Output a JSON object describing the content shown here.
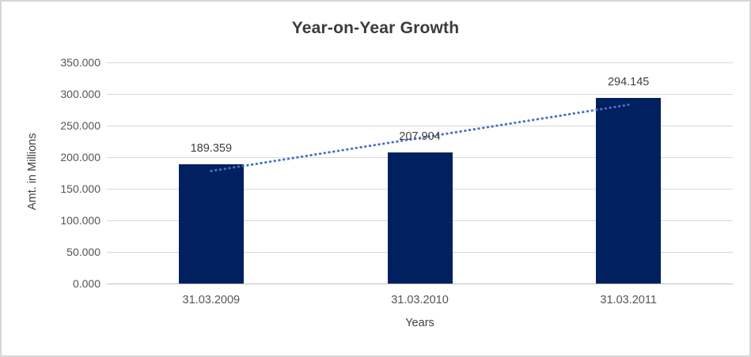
{
  "window": {
    "background_color": "#ffffff",
    "border_color": "#d6d6d6"
  },
  "chart_data": {
    "type": "bar",
    "title": "Year-on-Year Growth",
    "xlabel": "Years",
    "ylabel": "Amt. in Millions",
    "categories": [
      "31.03.2009",
      "31.03.2010",
      "31.03.2011"
    ],
    "values": [
      189.359,
      207.904,
      294.145
    ],
    "data_labels": [
      "189.359",
      "207.904",
      "294.145"
    ],
    "ylim": [
      0,
      350
    ],
    "ytick_interval": 50,
    "ytick_labels": [
      "0.000",
      "50.000",
      "100.000",
      "150.000",
      "200.000",
      "250.000",
      "300.000",
      "350.000"
    ],
    "grid": true,
    "legend": "none",
    "bar_color": "#002060",
    "trendline": {
      "type": "linear",
      "style": "dotted",
      "color": "#4472C4"
    },
    "gridline_color": "#d9d9d9",
    "axis_line_color": "#bfbfbf",
    "title_color": "#3b3b3b",
    "data_label_color": "#404040",
    "tick_label_color": "#555555"
  }
}
